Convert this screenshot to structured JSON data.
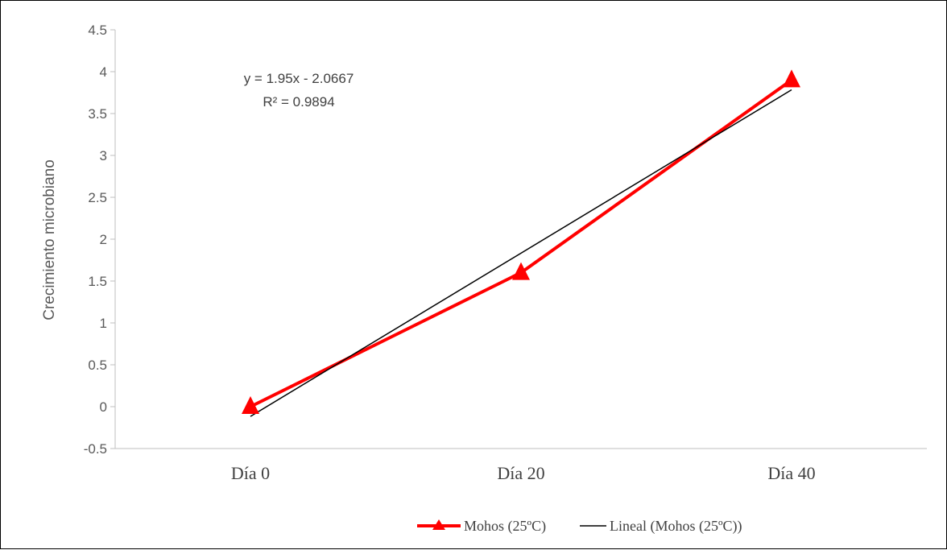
{
  "chart_data": {
    "type": "line",
    "categories": [
      "Día 0",
      "Día 20",
      "Día 40"
    ],
    "series": [
      {
        "name": "Mohos (25ºC)",
        "values": [
          0,
          1.6,
          3.9
        ],
        "color": "#ff0000",
        "marker": "triangle"
      },
      {
        "name": "Lineal (Mohos (25ºC))",
        "trendline": true,
        "slope": 1.95,
        "intercept": -2.0667,
        "color": "#000000"
      }
    ],
    "ylabel": "Crecimiento microbiano",
    "ylim": [
      -0.5,
      4.5
    ],
    "yticks": [
      "-0.5",
      "0",
      "0.5",
      "1",
      "1.5",
      "2",
      "2.5",
      "3",
      "3.5",
      "4",
      "4.5"
    ],
    "equation": "y = 1.95x - 2.0667",
    "r_squared": "R² = 0.9894",
    "grid": false,
    "legend_position": "bottom"
  }
}
